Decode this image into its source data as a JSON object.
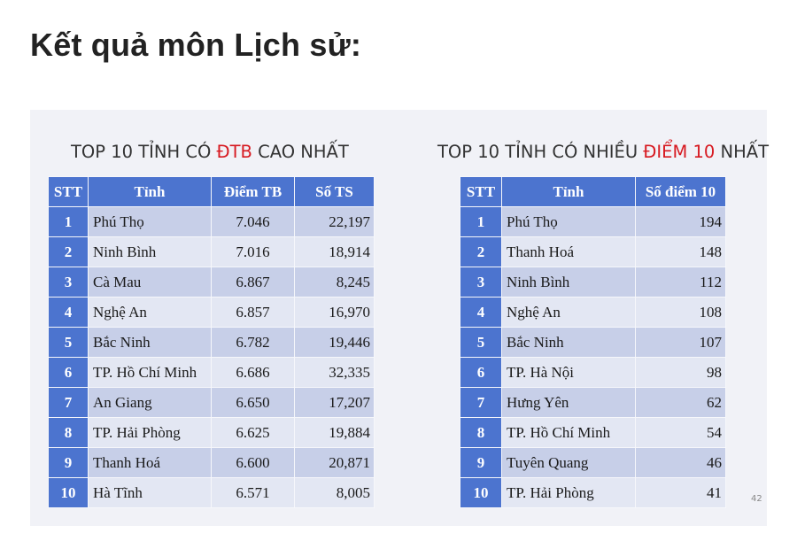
{
  "page_title": "Kết quả môn Lịch sử:",
  "left_table": {
    "title_pre": "TOP 10 TỈNH CÓ ",
    "title_hl": "ĐTB",
    "title_post": " CAO NHẤT",
    "headers": [
      "STT",
      "Tỉnh",
      "Điểm TB",
      "Số TS"
    ],
    "rows": [
      {
        "stt": "1",
        "name": "Phú Thọ",
        "score": "7.046",
        "count": "22,197"
      },
      {
        "stt": "2",
        "name": "Ninh Bình",
        "score": "7.016",
        "count": "18,914"
      },
      {
        "stt": "3",
        "name": "Cà Mau",
        "score": "6.867",
        "count": "8,245"
      },
      {
        "stt": "4",
        "name": "Nghệ An",
        "score": "6.857",
        "count": "16,970"
      },
      {
        "stt": "5",
        "name": "Bắc Ninh",
        "score": "6.782",
        "count": "19,446"
      },
      {
        "stt": "6",
        "name": "TP. Hồ Chí Minh",
        "score": "6.686",
        "count": "32,335"
      },
      {
        "stt": "7",
        "name": "An Giang",
        "score": "6.650",
        "count": "17,207"
      },
      {
        "stt": "8",
        "name": "TP. Hải Phòng",
        "score": "6.625",
        "count": "19,884"
      },
      {
        "stt": "9",
        "name": "Thanh Hoá",
        "score": "6.600",
        "count": "20,871"
      },
      {
        "stt": "10",
        "name": "Hà Tĩnh",
        "score": "6.571",
        "count": "8,005"
      }
    ]
  },
  "right_table": {
    "title_pre": "TOP 10 TỈNH CÓ NHIỀU ",
    "title_hl": "ĐIỂM 10",
    "title_post": " NHẤT",
    "headers": [
      "STT",
      "Tỉnh",
      "Số điểm 10"
    ],
    "rows": [
      {
        "stt": "1",
        "name": "Phú Thọ",
        "count": "194"
      },
      {
        "stt": "2",
        "name": "Thanh Hoá",
        "count": "148"
      },
      {
        "stt": "3",
        "name": "Ninh Bình",
        "count": "112"
      },
      {
        "stt": "4",
        "name": "Nghệ An",
        "count": "108"
      },
      {
        "stt": "5",
        "name": "Bắc Ninh",
        "count": "107"
      },
      {
        "stt": "6",
        "name": "TP. Hà Nội",
        "count": "98"
      },
      {
        "stt": "7",
        "name": "Hưng Yên",
        "count": "62"
      },
      {
        "stt": "8",
        "name": "TP. Hồ Chí Minh",
        "count": "54"
      },
      {
        "stt": "9",
        "name": "Tuyên Quang",
        "count": "46"
      },
      {
        "stt": "10",
        "name": "TP. Hải Phòng",
        "count": "41"
      }
    ]
  },
  "slide_number": "42",
  "colors": {
    "header_blue": "#4c74cf",
    "row_dark": "#c7cfe8",
    "row_light": "#e3e7f3",
    "highlight_red": "#d71920",
    "slide_bg": "#f1f2f7"
  }
}
